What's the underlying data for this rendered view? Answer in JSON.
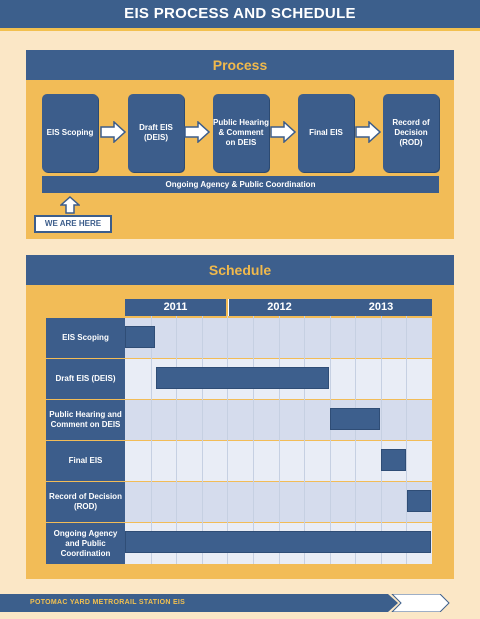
{
  "page": {
    "title": "EIS PROCESS AND SCHEDULE"
  },
  "process": {
    "title": "Process",
    "steps": [
      "EIS Scoping",
      "Draft EIS (DEIS)",
      "Public Hearing & Comment on DEIS",
      "Final EIS",
      "Record of Decision (ROD)"
    ],
    "ongoing": "Ongoing Agency & Public Coordination",
    "we_are_here": "WE ARE HERE"
  },
  "schedule": {
    "title": "Schedule",
    "years": [
      "2011",
      "2012",
      "2013"
    ],
    "rows": [
      {
        "label": "EIS Scoping",
        "start": 0.0,
        "end": 0.1
      },
      {
        "label": "Draft EIS (DEIS)",
        "start": 0.1,
        "end": 0.667
      },
      {
        "label": "Public  Hearing and Comment on DEIS",
        "start": 0.667,
        "end": 0.833
      },
      {
        "label": "Final EIS",
        "start": 0.833,
        "end": 0.917
      },
      {
        "label": "Record of Decision (ROD)",
        "start": 0.917,
        "end": 1.0
      },
      {
        "label": "Ongoing Agency and Public Coordination",
        "start": 0.0,
        "end": 1.0
      }
    ]
  },
  "footer": {
    "text": "POTOMAC YARD METRORAIL STATION EIS"
  },
  "colors": {
    "navy": "#3c5f8c",
    "gold": "#f2bc57",
    "cream": "#fbe7c6"
  }
}
